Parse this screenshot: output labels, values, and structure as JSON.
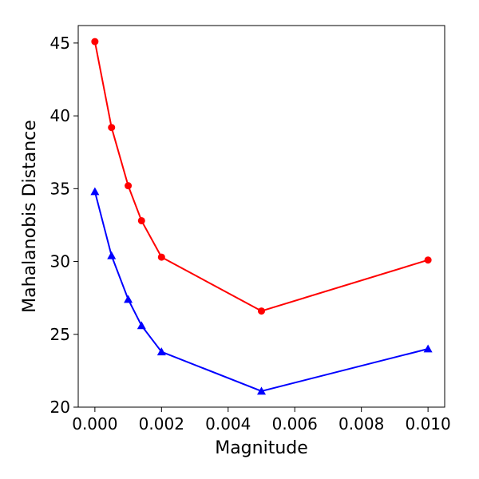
{
  "chart_data": {
    "type": "line",
    "title": "",
    "xlabel": "Magnitude",
    "ylabel": "Mahalanobis Distance",
    "xlim": [
      -0.0005,
      0.0105
    ],
    "ylim": [
      20,
      46.2
    ],
    "x_ticks": [
      0.0,
      0.002,
      0.004,
      0.006,
      0.008,
      0.01
    ],
    "x_tick_labels": [
      "0.000",
      "0.002",
      "0.004",
      "0.006",
      "0.008",
      "0.010"
    ],
    "y_ticks": [
      20,
      25,
      30,
      35,
      40,
      45
    ],
    "y_tick_labels": [
      "20",
      "25",
      "30",
      "35",
      "40",
      "45"
    ],
    "grid": false,
    "x": [
      0.0,
      0.0005,
      0.001,
      0.0014,
      0.002,
      0.005,
      0.01
    ],
    "series": [
      {
        "color": "#ff0000",
        "marker": "circle",
        "values": [
          45.1,
          39.2,
          35.2,
          32.8,
          30.3,
          26.6,
          30.1
        ]
      },
      {
        "color": "#0000ff",
        "marker": "triangle",
        "values": [
          34.8,
          30.4,
          27.4,
          25.6,
          23.8,
          21.1,
          24.0
        ]
      }
    ]
  }
}
